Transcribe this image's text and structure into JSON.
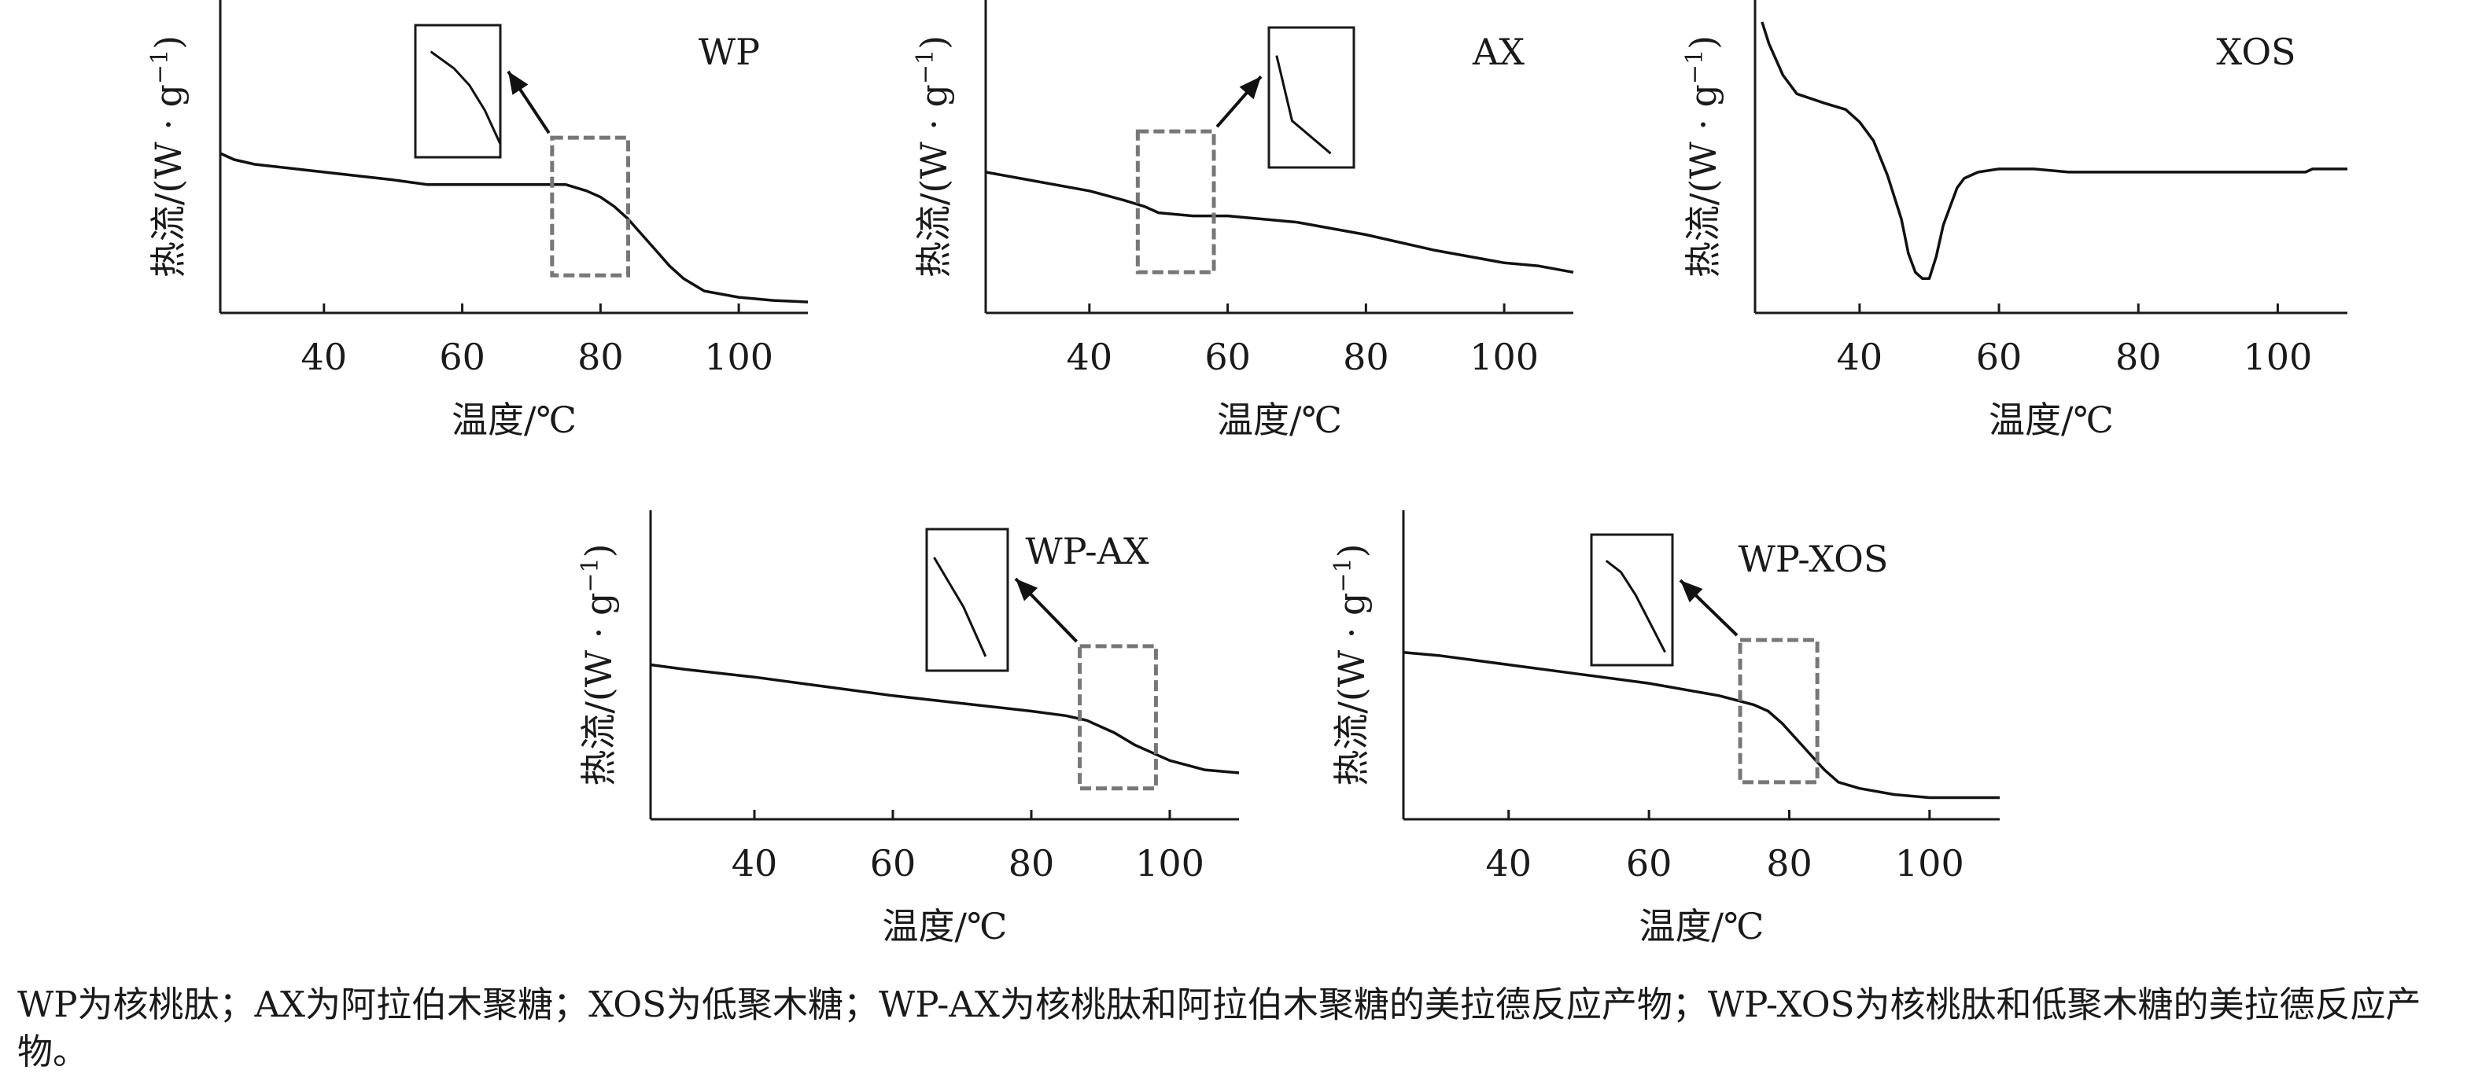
{
  "chart_data": [
    {
      "type": "line",
      "title": "WP",
      "xlabel": "温度/℃",
      "ylabel_main": "热流/(W · g",
      "ylabel_sup": "−1",
      "ylabel_close": ")",
      "xlim": [
        25,
        110
      ],
      "xticks": [
        40,
        60,
        80,
        100
      ],
      "ylim": [
        0,
        100
      ],
      "series": [
        {
          "x": [
            25,
            27,
            30,
            40,
            50,
            55,
            60,
            70,
            75,
            78,
            80,
            82,
            84,
            86,
            88,
            90,
            92,
            95,
            100,
            105,
            110
          ],
          "y": [
            51,
            49,
            47.5,
            45,
            42.5,
            41,
            41,
            41,
            41,
            39,
            37,
            34,
            30,
            25,
            20,
            15,
            11,
            7,
            5,
            4,
            3.5
          ]
        }
      ],
      "inset_highlight": {
        "xrange": [
          73,
          84
        ],
        "yrange": [
          12,
          56
        ]
      }
    },
    {
      "type": "line",
      "title": "AX",
      "xlabel": "温度/℃",
      "ylabel_main": "热流/(W · g",
      "ylabel_sup": "−1",
      "ylabel_close": ")",
      "xlim": [
        25,
        110
      ],
      "xticks": [
        40,
        60,
        80,
        100
      ],
      "ylim": [
        0,
        100
      ],
      "series": [
        {
          "x": [
            25,
            30,
            40,
            45,
            48,
            50,
            55,
            60,
            65,
            70,
            80,
            90,
            100,
            105,
            110
          ],
          "y": [
            45,
            43,
            39,
            36,
            34,
            32,
            31,
            31,
            30,
            29,
            25,
            20,
            16,
            15,
            13
          ]
        }
      ],
      "inset_highlight": {
        "xrange": [
          47,
          58
        ],
        "yrange": [
          13,
          58
        ]
      }
    },
    {
      "type": "line",
      "title": "XOS",
      "xlabel": "温度/℃",
      "ylabel_main": "热流/(W · g",
      "ylabel_sup": "−1",
      "ylabel_close": ")",
      "xlim": [
        25,
        110
      ],
      "xticks": [
        40,
        60,
        80,
        100
      ],
      "ylim": [
        0,
        100
      ],
      "series": [
        {
          "x": [
            26,
            27,
            29,
            31,
            35,
            38,
            40,
            42,
            44,
            46,
            47,
            48,
            49,
            50,
            51,
            52,
            53,
            54,
            55,
            57,
            60,
            65,
            70,
            80,
            90,
            100,
            104,
            105,
            110
          ],
          "y": [
            93,
            86,
            76,
            70,
            67,
            65,
            61,
            55,
            44,
            30,
            19,
            13,
            11,
            11,
            18,
            28,
            34,
            40,
            43,
            45,
            46,
            46,
            45,
            45,
            45,
            45,
            45,
            46,
            46
          ]
        }
      ]
    },
    {
      "type": "line",
      "title": "WP-AX",
      "xlabel": "温度/℃",
      "ylabel_main": "热流/(W · g",
      "ylabel_sup": "−1",
      "ylabel_close": ")",
      "xlim": [
        25,
        110
      ],
      "xticks": [
        40,
        60,
        80,
        100
      ],
      "ylim": [
        0,
        100
      ],
      "series": [
        {
          "x": [
            25,
            30,
            40,
            50,
            60,
            70,
            80,
            85,
            88,
            90,
            92,
            95,
            100,
            105,
            110
          ],
          "y": [
            50,
            48.5,
            46,
            43,
            40,
            37.5,
            35,
            33.5,
            32,
            30,
            28,
            24,
            19,
            16,
            15
          ]
        }
      ],
      "inset_highlight": {
        "xrange": [
          87,
          98
        ],
        "yrange": [
          10,
          56
        ]
      }
    },
    {
      "type": "line",
      "title": "WP-XOS",
      "xlabel": "温度/℃",
      "ylabel_main": "热流/(W · g",
      "ylabel_sup": "−1",
      "ylabel_close": ")",
      "xlim": [
        25,
        110
      ],
      "xticks": [
        40,
        60,
        80,
        100
      ],
      "ylim": [
        0,
        100
      ],
      "series": [
        {
          "x": [
            25,
            30,
            40,
            50,
            60,
            70,
            75,
            77,
            79,
            81,
            83,
            85,
            87,
            90,
            95,
            100,
            105,
            110
          ],
          "y": [
            54,
            53,
            50,
            47,
            44,
            40,
            37,
            35,
            31,
            26,
            21,
            16,
            12,
            10,
            8,
            7,
            7,
            7
          ]
        }
      ],
      "inset_highlight": {
        "xrange": [
          73,
          84
        ],
        "yrange": [
          12,
          58
        ]
      }
    }
  ],
  "caption": "WP为核桃肽；AX为阿拉伯木聚糖；XOS为低聚木糖；WP-AX为核桃肽和阿拉伯木聚糖的美拉德反应产物；WP-XOS为核桃肽和低聚木糖的美拉德反应产物。"
}
